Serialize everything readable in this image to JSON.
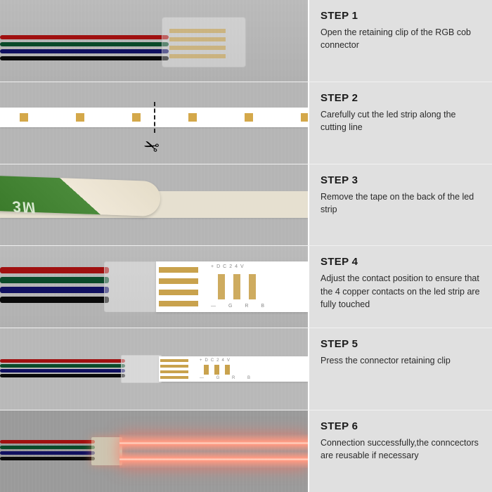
{
  "wire_colors": {
    "red": "#a01010",
    "green": "#0a4a2a",
    "blue": "#101060",
    "black": "#0a0a0a"
  },
  "copper_color": "#c9a24d",
  "tape_brand": "3M",
  "strip_voltage_label": "+DC24V",
  "strip_channel_labels": "— G    R   B",
  "lit_glow_color": "#ff8a72",
  "steps": [
    {
      "title": "STEP 1",
      "desc": "Open the retaining clip of the RGB cob connector"
    },
    {
      "title": "STEP 2",
      "desc": "Carefully cut the led strip along the cutting line"
    },
    {
      "title": "STEP 3",
      "desc": "Remove the tape on the back of the led strip"
    },
    {
      "title": "STEP 4",
      "desc": "Adjust the contact position to ensure that the 4 copper contacts on the led strip are fully touched"
    },
    {
      "title": "STEP 5",
      "desc": "Press the connector retaining clip"
    },
    {
      "title": "STEP 6",
      "desc": "Connection successfully,the conncectors are reusable if necessary"
    }
  ]
}
